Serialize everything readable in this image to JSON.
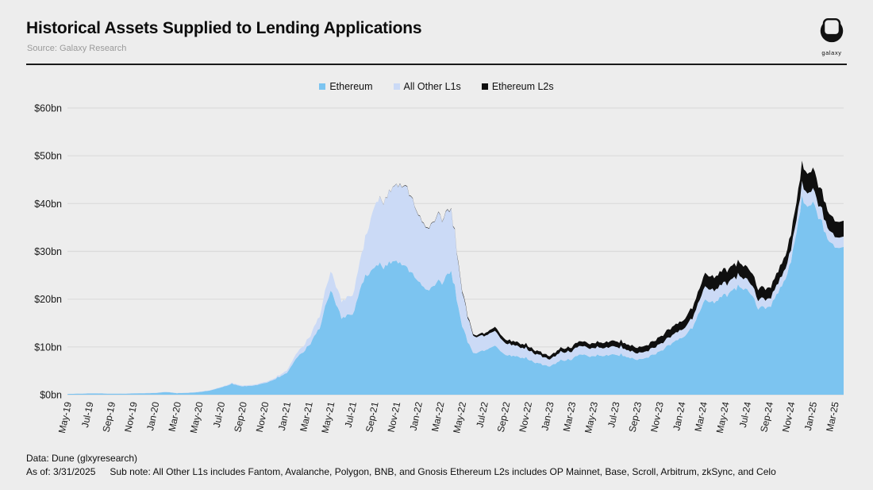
{
  "header": {
    "title": "Historical Assets Supplied to Lending Applications",
    "source": "Source: Galaxy Research",
    "logo_text": "galaxy"
  },
  "footer": {
    "line1": "Data: Dune (glxyresearch)",
    "line2_a": "As of: 3/31/2025",
    "line2_b": "Sub note: All Other L1s includes Fantom, Avalanche, Polygon, BNB, and Gnosis Ethereum L2s includes OP Mainnet, Base, Scroll, Arbitrum, zkSync, and Celo"
  },
  "colors": {
    "background": "#EDEDED",
    "gridline": "#DBDBDB",
    "divider": "#1A1A1A",
    "axis_text": "#1A1A1A"
  },
  "chart_data": {
    "type": "area",
    "stacked": true,
    "title": "Historical Assets Supplied to Lending Applications",
    "unit": "USD billions",
    "ylim": [
      0,
      60
    ],
    "ytick_step": 10,
    "ytick_prefix": "$",
    "ytick_suffix": "bn",
    "xtick_every": 2,
    "grid": true,
    "legend_position": "top-center",
    "x": [
      "May-19",
      "Jun-19",
      "Jul-19",
      "Aug-19",
      "Sep-19",
      "Oct-19",
      "Nov-19",
      "Dec-19",
      "Jan-20",
      "Feb-20",
      "Mar-20",
      "Apr-20",
      "May-20",
      "Jun-20",
      "Jul-20",
      "Aug-20",
      "Sep-20",
      "Oct-20",
      "Nov-20",
      "Dec-20",
      "Jan-21",
      "Feb-21",
      "Mar-21",
      "Apr-21",
      "May-21",
      "Jun-21",
      "Jul-21",
      "Aug-21",
      "Sep-21",
      "Oct-21",
      "Nov-21",
      "Dec-21",
      "Jan-22",
      "Feb-22",
      "Mar-22",
      "Apr-22",
      "May-22",
      "Jun-22",
      "Jul-22",
      "Aug-22",
      "Sep-22",
      "Oct-22",
      "Nov-22",
      "Dec-22",
      "Jan-23",
      "Feb-23",
      "Mar-23",
      "Apr-23",
      "May-23",
      "Jun-23",
      "Jul-23",
      "Aug-23",
      "Sep-23",
      "Oct-23",
      "Nov-23",
      "Dec-23",
      "Jan-24",
      "Feb-24",
      "Mar-24",
      "Apr-24",
      "May-24",
      "Jun-24",
      "Jul-24",
      "Aug-24",
      "Sep-24",
      "Oct-24",
      "Nov-24",
      "Dec-24",
      "Jan-25",
      "Feb-25",
      "Mar-25"
    ],
    "series": [
      {
        "name": "Ethereum",
        "color": "#7CC4F0",
        "values": [
          0.15,
          0.2,
          0.25,
          0.25,
          0.2,
          0.2,
          0.25,
          0.3,
          0.35,
          0.55,
          0.3,
          0.4,
          0.55,
          0.9,
          1.5,
          2.2,
          1.8,
          1.9,
          2.4,
          3.2,
          4.5,
          8,
          10,
          14,
          22,
          16,
          17,
          24,
          27,
          27,
          28,
          27,
          24,
          22,
          24,
          26,
          14,
          8.5,
          9,
          10,
          8.5,
          8,
          7.5,
          6.5,
          6,
          7,
          7.5,
          8.5,
          8,
          8,
          8.5,
          8,
          7.5,
          8,
          9,
          10.5,
          12,
          14,
          20,
          19,
          21,
          22,
          22,
          18,
          18,
          22,
          28,
          42,
          40,
          34,
          31
        ]
      },
      {
        "name": "All Other L1s",
        "color": "#CBDAF6",
        "values": [
          0.02,
          0.02,
          0.03,
          0.03,
          0.03,
          0.03,
          0.04,
          0.04,
          0.05,
          0.06,
          0.04,
          0.05,
          0.06,
          0.08,
          0.1,
          0.15,
          0.15,
          0.15,
          0.2,
          0.25,
          0.5,
          1,
          1.5,
          2.5,
          4,
          3.5,
          4,
          7,
          13,
          14,
          16,
          17,
          14,
          13,
          14,
          13,
          7,
          3.5,
          3,
          3,
          2.5,
          2.2,
          2,
          1.8,
          1.5,
          1.7,
          1.7,
          1.8,
          1.7,
          1.6,
          1.7,
          1.5,
          1.4,
          1.4,
          1.5,
          1.6,
          1.7,
          2,
          2.8,
          2.5,
          2.5,
          2.3,
          2.2,
          1.8,
          1.7,
          2,
          2.5,
          3,
          2.8,
          2.5,
          2.2
        ]
      },
      {
        "name": "Ethereum L2s",
        "color": "#0F0F0F",
        "values": [
          0,
          0,
          0,
          0,
          0,
          0,
          0,
          0,
          0,
          0,
          0,
          0,
          0,
          0,
          0,
          0,
          0,
          0,
          0,
          0,
          0,
          0,
          0,
          0,
          0,
          0,
          0,
          0,
          0,
          0.05,
          0.05,
          0.1,
          0.1,
          0.1,
          0.1,
          0.1,
          0.2,
          0.3,
          0.5,
          0.8,
          0.8,
          0.8,
          0.8,
          0.7,
          0.7,
          0.8,
          0.9,
          1,
          1,
          1.1,
          1.2,
          1.2,
          1.2,
          1.3,
          1.5,
          1.7,
          1.8,
          2.2,
          2.8,
          2.7,
          2.8,
          2.7,
          2.6,
          2.3,
          2.2,
          2.5,
          3.2,
          4.5,
          4.2,
          3.8,
          3.3
        ]
      }
    ]
  }
}
